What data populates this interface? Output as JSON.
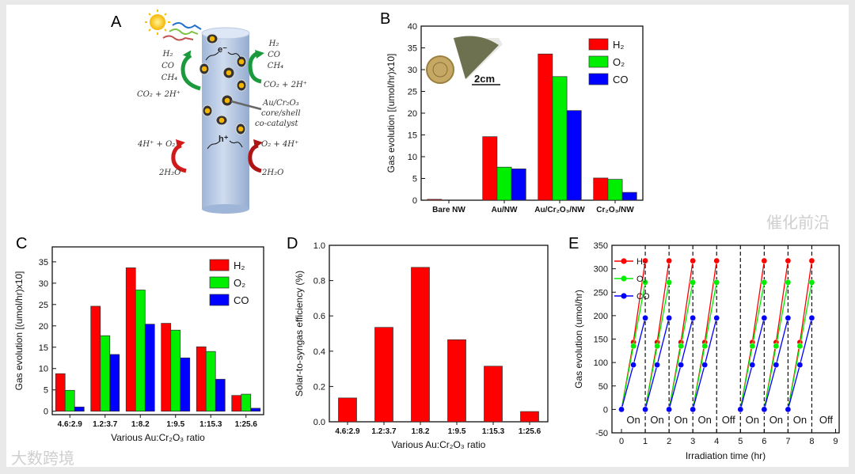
{
  "panels": {
    "a": "A",
    "b": "B",
    "c": "C",
    "d": "D",
    "e": "E"
  },
  "diagram": {
    "left_products": [
      "H₂",
      "CO",
      "CH₄"
    ],
    "left_reactant": "CO₂ + 2H⁺",
    "right_products": [
      "H₂",
      "CO",
      "CH₄"
    ],
    "right_reactant": "CO₂ + 2H⁺",
    "catalyst_label": [
      "Au/Cr₂O₃",
      "core/shell",
      "co-catalyst"
    ],
    "left_oxidation": "4H⁺ + O₂",
    "right_oxidation": "O₂ + 4H⁺",
    "left_water": "2H₂O",
    "right_water": "2H₂O",
    "electron": "e⁻",
    "hole": "h⁺"
  },
  "inset": {
    "scale_bar": "2cm"
  },
  "watermarks": {
    "left": "大数跨境",
    "right": "催化前沿"
  },
  "colors": {
    "h2": "#ff0000",
    "o2": "#00ee00",
    "co": "#0000ff"
  },
  "chart_data": [
    {
      "type": "bar",
      "panel": "B",
      "title": "",
      "categories": [
        "Bare NW",
        "Au/NW",
        "Au/Cr₂O₃/NW",
        "Cr₂O₃/NW"
      ],
      "series": [
        {
          "name": "H₂",
          "color": "#ff0000",
          "values": [
            0.2,
            14.6,
            33.6,
            5.1
          ]
        },
        {
          "name": "O₂",
          "color": "#00ee00",
          "values": [
            0,
            7.6,
            28.4,
            4.8
          ]
        },
        {
          "name": "CO",
          "color": "#0000ff",
          "values": [
            0,
            7.2,
            20.6,
            1.8
          ]
        }
      ],
      "xlabel": "",
      "ylabel": "Gas evolution [(umol/hr)x10]",
      "ylim": [
        0,
        40
      ],
      "yticks": [
        "0",
        "5",
        "10",
        "15",
        "20",
        "25",
        "30",
        "35",
        "40"
      ],
      "legend": "top-right"
    },
    {
      "type": "bar",
      "panel": "C",
      "categories": [
        "4.6:2.9",
        "1.2:3.7",
        "1:8.2",
        "1:9.5",
        "1:15.3",
        "1:25.6"
      ],
      "series": [
        {
          "name": "H₂",
          "color": "#ff0000",
          "values": [
            8.8,
            24.6,
            33.6,
            20.6,
            15.1,
            3.7
          ]
        },
        {
          "name": "O₂",
          "color": "#00ee00",
          "values": [
            4.9,
            17.7,
            28.4,
            19.0,
            14.0,
            4.0
          ]
        },
        {
          "name": "CO",
          "color": "#0000ff",
          "values": [
            1.0,
            13.3,
            20.4,
            12.5,
            7.5,
            0.7
          ]
        }
      ],
      "xlabel": "Various Au:Cr₂O₃ ratio",
      "ylabel": "Gas evolution [(umol/hr)x10]",
      "ylim": [
        -0.8,
        38.5
      ],
      "yticks": [
        "0",
        "5",
        "10",
        "15",
        "20",
        "25",
        "30",
        "35"
      ],
      "legend": "top-right"
    },
    {
      "type": "bar",
      "panel": "D",
      "categories": [
        "4.6:2.9",
        "1.2:3.7",
        "1:8.2",
        "1:9.5",
        "1:15.3",
        "1:25.6"
      ],
      "series": [
        {
          "name": "Solar-to-syngas efficiency",
          "color": "#ff0000",
          "values": [
            0.135,
            0.535,
            0.875,
            0.465,
            0.315,
            0.058
          ]
        }
      ],
      "xlabel": "Various Au:Cr₂O₃ ratio",
      "ylabel": "Solar-to-syngas efficiency (%)",
      "ylim": [
        0,
        1.0
      ],
      "yticks": [
        "0.0",
        "0.2",
        "0.4",
        "0.6",
        "0.8",
        "1.0"
      ],
      "legend": "none"
    },
    {
      "type": "line",
      "panel": "E",
      "xlabel": "Irradiation time (hr)",
      "ylabel": "Gas evolution (umol/hr)",
      "xlim": [
        -0.4,
        9.15
      ],
      "ylim": [
        -50,
        350
      ],
      "xticks": [
        "0",
        "1",
        "2",
        "3",
        "4",
        "5",
        "6",
        "7",
        "8",
        "9"
      ],
      "yticks": [
        "-50",
        "0",
        "50",
        "100",
        "150",
        "200",
        "250",
        "300",
        "350"
      ],
      "cycle_starts": [
        0,
        1,
        2,
        3,
        5,
        6,
        7
      ],
      "cycle_times": [
        0,
        0.5,
        1
      ],
      "series": [
        {
          "name": "H₂",
          "color": "#ff0000",
          "values": [
            0,
            143,
            317
          ]
        },
        {
          "name": "O₂",
          "color": "#00ee00",
          "values": [
            0,
            135,
            271
          ]
        },
        {
          "name": "CO",
          "color": "#0000ff",
          "values": [
            0,
            95,
            195
          ]
        }
      ],
      "switch_times": [
        1,
        2,
        3,
        4,
        5,
        6,
        7,
        8
      ],
      "period_labels": [
        {
          "text": "On",
          "x": 0.5
        },
        {
          "text": "On",
          "x": 1.5
        },
        {
          "text": "On",
          "x": 2.5
        },
        {
          "text": "On",
          "x": 3.5
        },
        {
          "text": "Off",
          "x": 4.5
        },
        {
          "text": "On",
          "x": 5.5
        },
        {
          "text": "On",
          "x": 6.5
        },
        {
          "text": "On",
          "x": 7.5
        },
        {
          "text": "Off",
          "x": 8.6
        }
      ],
      "legend": "top-left"
    }
  ]
}
